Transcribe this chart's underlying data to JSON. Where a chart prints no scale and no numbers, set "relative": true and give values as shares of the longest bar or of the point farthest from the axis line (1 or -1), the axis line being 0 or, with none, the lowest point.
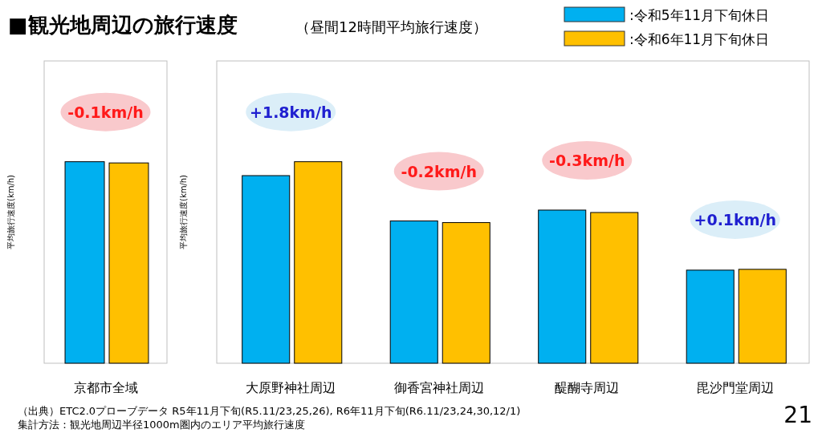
{
  "chart_data": [
    {
      "type": "bar",
      "title": "■観光地周辺の旅行速度",
      "ylabel": "平均旅行速度(km/h)",
      "relative": true,
      "categories": [
        "京都市全域"
      ],
      "series": [
        {
          "color": "#00b0f0",
          "values": [
            1
          ]
        },
        {
          "color": "#ffc000",
          "values": [
            0.994
          ]
        }
      ],
      "annotations": [
        "-0.1km/h"
      ]
    },
    {
      "type": "bar",
      "subtitle": "（昼間12時間平均旅行速度）",
      "ylabel": "平均旅行速度(km/h)",
      "relative": true,
      "legend": "top",
      "categories": [
        "大原野神社周辺",
        "御香宮神社周辺",
        "醍醐寺周辺",
        "毘沙門堂周辺"
      ],
      "series": [
        {
          "name": ":令和5年11月下旬休日",
          "color": "#00b0f0",
          "values": [
            0.931,
            0.706,
            0.76,
            0.462
          ]
        },
        {
          "name": ":令和6年11月下旬休日",
          "color": "#ffc000",
          "values": [
            1,
            0.698,
            0.748,
            0.466
          ]
        }
      ],
      "annotations": [
        "+1.8km/h",
        "-0.2km/h",
        "-0.3km/h",
        "+0.1km/h",
        "（出典）ETC2.0プローブデータ R5年11月下旬(R5.11/23,25,26), R6年11月下旬(R6.11/23,24,30,12/1)",
        "集計方法：観光地周辺半径1000m圏内のエリア平均旅行速度",
        "21"
      ]
    }
  ]
}
